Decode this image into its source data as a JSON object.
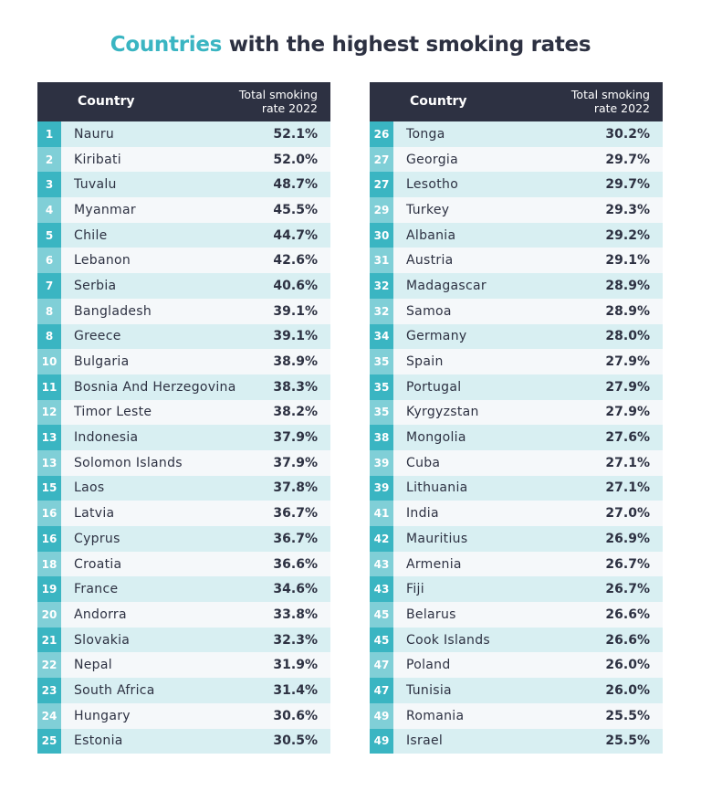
{
  "title": {
    "accent": "Countries",
    "rest": " with the highest smoking rates"
  },
  "colors": {
    "header": "#2d3142",
    "accent": "#3ab5c2",
    "rank_light": "#80cfd7",
    "row_tint": "#d8eff2"
  },
  "chart_data": {
    "type": "table",
    "title": "Countries with the highest smoking rates",
    "columns": [
      "",
      "Country",
      "Total smoking rate 2022"
    ],
    "tables": [
      {
        "header": {
          "country": "Country",
          "rate": "Total smoking rate 2022",
          "rate_l1": "Total smoking",
          "rate_l2": "rate 2022"
        },
        "rows": [
          {
            "rank": "1",
            "country": "Nauru",
            "rate": "52.1%"
          },
          {
            "rank": "2",
            "country": "Kiribati",
            "rate": "52.0%"
          },
          {
            "rank": "3",
            "country": "Tuvalu",
            "rate": "48.7%"
          },
          {
            "rank": "4",
            "country": "Myanmar",
            "rate": "45.5%"
          },
          {
            "rank": "5",
            "country": "Chile",
            "rate": "44.7%"
          },
          {
            "rank": "6",
            "country": "Lebanon",
            "rate": "42.6%"
          },
          {
            "rank": "7",
            "country": "Serbia",
            "rate": "40.6%"
          },
          {
            "rank": "8",
            "country": "Bangladesh",
            "rate": "39.1%"
          },
          {
            "rank": "8",
            "country": "Greece",
            "rate": "39.1%"
          },
          {
            "rank": "10",
            "country": "Bulgaria",
            "rate": "38.9%"
          },
          {
            "rank": "11",
            "country": "Bosnia And Herzegovina",
            "rate": "38.3%"
          },
          {
            "rank": "12",
            "country": "Timor Leste",
            "rate": "38.2%"
          },
          {
            "rank": "13",
            "country": "Indonesia",
            "rate": "37.9%"
          },
          {
            "rank": "13",
            "country": "Solomon Islands",
            "rate": "37.9%"
          },
          {
            "rank": "15",
            "country": "Laos",
            "rate": "37.8%"
          },
          {
            "rank": "16",
            "country": "Latvia",
            "rate": "36.7%"
          },
          {
            "rank": "16",
            "country": "Cyprus",
            "rate": "36.7%"
          },
          {
            "rank": "18",
            "country": "Croatia",
            "rate": "36.6%"
          },
          {
            "rank": "19",
            "country": "France",
            "rate": "34.6%"
          },
          {
            "rank": "20",
            "country": "Andorra",
            "rate": "33.8%"
          },
          {
            "rank": "21",
            "country": "Slovakia",
            "rate": "32.3%"
          },
          {
            "rank": "22",
            "country": "Nepal",
            "rate": "31.9%"
          },
          {
            "rank": "23",
            "country": "South Africa",
            "rate": "31.4%"
          },
          {
            "rank": "24",
            "country": "Hungary",
            "rate": "30.6%"
          },
          {
            "rank": "25",
            "country": "Estonia",
            "rate": "30.5%"
          }
        ]
      },
      {
        "header": {
          "country": "Country",
          "rate": "Total smoking rate 2022",
          "rate_l1": "Total smoking",
          "rate_l2": "rate 2022"
        },
        "rows": [
          {
            "rank": "26",
            "country": "Tonga",
            "rate": "30.2%"
          },
          {
            "rank": "27",
            "country": "Georgia",
            "rate": "29.7%"
          },
          {
            "rank": "27",
            "country": "Lesotho",
            "rate": "29.7%"
          },
          {
            "rank": "29",
            "country": "Turkey",
            "rate": "29.3%"
          },
          {
            "rank": "30",
            "country": "Albania",
            "rate": "29.2%"
          },
          {
            "rank": "31",
            "country": "Austria",
            "rate": "29.1%"
          },
          {
            "rank": "32",
            "country": "Madagascar",
            "rate": "28.9%"
          },
          {
            "rank": "32",
            "country": "Samoa",
            "rate": "28.9%"
          },
          {
            "rank": "34",
            "country": "Germany",
            "rate": "28.0%"
          },
          {
            "rank": "35",
            "country": "Spain",
            "rate": "27.9%"
          },
          {
            "rank": "35",
            "country": "Portugal",
            "rate": "27.9%"
          },
          {
            "rank": "35",
            "country": "Kyrgyzstan",
            "rate": "27.9%"
          },
          {
            "rank": "38",
            "country": "Mongolia",
            "rate": "27.6%"
          },
          {
            "rank": "39",
            "country": "Cuba",
            "rate": "27.1%"
          },
          {
            "rank": "39",
            "country": "Lithuania",
            "rate": "27.1%"
          },
          {
            "rank": "41",
            "country": "India",
            "rate": "27.0%"
          },
          {
            "rank": "42",
            "country": "Mauritius",
            "rate": "26.9%"
          },
          {
            "rank": "43",
            "country": "Armenia",
            "rate": "26.7%"
          },
          {
            "rank": "43",
            "country": "Fiji",
            "rate": "26.7%"
          },
          {
            "rank": "45",
            "country": "Belarus",
            "rate": "26.6%"
          },
          {
            "rank": "45",
            "country": "Cook Islands",
            "rate": "26.6%"
          },
          {
            "rank": "47",
            "country": "Poland",
            "rate": "26.0%"
          },
          {
            "rank": "47",
            "country": "Tunisia",
            "rate": "26.0%"
          },
          {
            "rank": "49",
            "country": "Romania",
            "rate": "25.5%"
          },
          {
            "rank": "49",
            "country": "Israel",
            "rate": "25.5%"
          }
        ]
      }
    ]
  }
}
